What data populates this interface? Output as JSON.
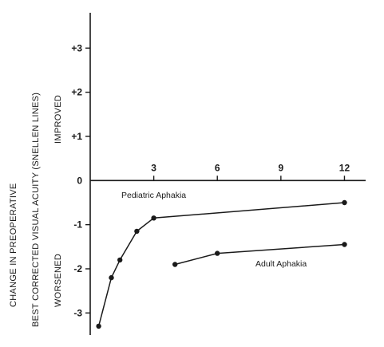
{
  "chart_data": {
    "type": "line",
    "y_axis_label_line1": "CHANGE IN PREOPERATIVE",
    "y_axis_label_line2": "BEST CORRECTED VISUAL ACUITY  (SNELLEN LINES)",
    "region_label_up": "IMPROVED",
    "region_label_down": "WORSENED",
    "xlim": [
      0,
      13
    ],
    "ylim": [
      -3.5,
      3.8
    ],
    "x_ticks": [
      3,
      6,
      9,
      12
    ],
    "x_tick_labels": [
      "3",
      "6",
      "9",
      "12"
    ],
    "y_ticks": [
      3,
      2,
      1,
      0,
      -1,
      -2,
      -3
    ],
    "y_tick_labels": [
      "+3",
      "+2",
      "+1",
      "0",
      "-1",
      "-2",
      "-3"
    ],
    "grid": false,
    "series": [
      {
        "name": "Pediatric Aphakia",
        "x": [
          0.4,
          1.0,
          1.4,
          2.2,
          3.0,
          12.0
        ],
        "y": [
          -3.3,
          -2.2,
          -1.8,
          -1.15,
          -0.85,
          -0.5
        ]
      },
      {
        "name": "Adult Aphakia",
        "x": [
          4.0,
          6.0,
          12.0
        ],
        "y": [
          -1.9,
          -1.65,
          -1.45
        ]
      }
    ]
  },
  "colors": {
    "ink": "#1a1a1a",
    "background": "#ffffff"
  }
}
